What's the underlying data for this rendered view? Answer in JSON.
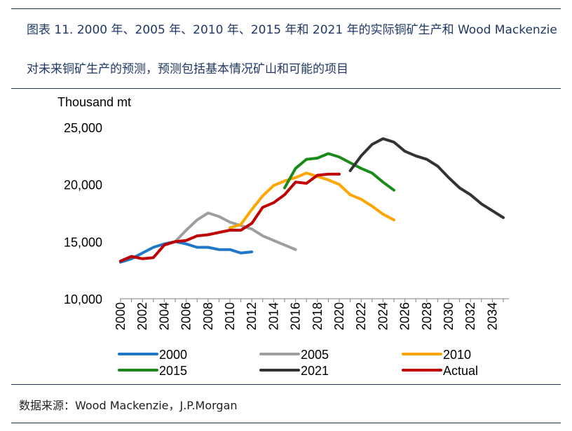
{
  "header": {
    "caption_line1": "图表 11. 2000 年、2005 年、2010 年、2015 年和 2021 年的实际铜矿生产和 Wood Mackenzie",
    "caption_line2": "对未来铜矿生产的预测，预测包括基本情况矿山和可能的项目"
  },
  "footer": {
    "source": "数据来源：Wood Mackenzie，J.P.Morgan"
  },
  "chart_data": {
    "type": "line",
    "title": "",
    "xlabel": "",
    "ylabel": "Thousand mt",
    "xlim": [
      2000,
      2035
    ],
    "ylim": [
      10000,
      25000
    ],
    "x_ticks": [
      "2000",
      "2002",
      "2004",
      "2006",
      "2008",
      "2010",
      "2012",
      "2014",
      "2016",
      "2018",
      "2020",
      "2022",
      "2024",
      "2026",
      "2028",
      "2030",
      "2032",
      "2034"
    ],
    "y_ticks": [
      "10,000",
      "15,000",
      "20,000",
      "25,000"
    ],
    "y_tick_values": [
      10000,
      15000,
      20000,
      25000
    ],
    "grid": false,
    "legend_position": "bottom",
    "series": [
      {
        "name": "2000",
        "color": "#1f77c8",
        "x": [
          2000,
          2001,
          2002,
          2003,
          2004,
          2005,
          2006,
          2007,
          2008,
          2009,
          2010,
          2011,
          2012
        ],
        "y": [
          13200,
          13500,
          14000,
          14500,
          14800,
          15000,
          14800,
          14500,
          14500,
          14300,
          14300,
          14000,
          14100
        ]
      },
      {
        "name": "2005",
        "color": "#9e9e9e",
        "x": [
          2005,
          2006,
          2007,
          2008,
          2009,
          2010,
          2011,
          2012,
          2013,
          2014,
          2015,
          2016
        ],
        "y": [
          15000,
          16000,
          16900,
          17500,
          17200,
          16700,
          16400,
          16100,
          15500,
          15100,
          14700,
          14300
        ]
      },
      {
        "name": "2010",
        "color": "#ffa500",
        "x": [
          2010,
          2011,
          2012,
          2013,
          2014,
          2015,
          2016,
          2017,
          2018,
          2019,
          2020,
          2021,
          2022,
          2023,
          2024,
          2025
        ],
        "y": [
          16200,
          16500,
          17800,
          19000,
          19900,
          20300,
          20600,
          21000,
          20700,
          20400,
          20000,
          19100,
          18700,
          18100,
          17400,
          16900
        ]
      },
      {
        "name": "2015",
        "color": "#1a8a1a",
        "x": [
          2015,
          2016,
          2017,
          2018,
          2019,
          2020,
          2021,
          2022,
          2023,
          2024,
          2025
        ],
        "y": [
          19700,
          21400,
          22200,
          22300,
          22700,
          22400,
          21900,
          21400,
          21000,
          20200,
          19500
        ]
      },
      {
        "name": "2021",
        "color": "#333333",
        "x": [
          2021,
          2022,
          2023,
          2024,
          2025,
          2026,
          2027,
          2028,
          2029,
          2030,
          2031,
          2032,
          2033,
          2034,
          2035
        ],
        "y": [
          21200,
          22500,
          23500,
          24000,
          23700,
          22900,
          22500,
          22200,
          21600,
          20600,
          19700,
          19100,
          18300,
          17700,
          17100
        ]
      },
      {
        "name": "Actual",
        "color": "#c00000",
        "x": [
          2000,
          2001,
          2002,
          2003,
          2004,
          2005,
          2006,
          2007,
          2008,
          2009,
          2010,
          2011,
          2012,
          2013,
          2014,
          2015,
          2016,
          2017,
          2018,
          2019,
          2020
        ],
        "y": [
          13300,
          13700,
          13500,
          13600,
          14700,
          15000,
          15100,
          15500,
          15600,
          15800,
          16000,
          16000,
          16600,
          18000,
          18400,
          19100,
          20200,
          20100,
          20800,
          20900,
          20900
        ]
      }
    ]
  }
}
